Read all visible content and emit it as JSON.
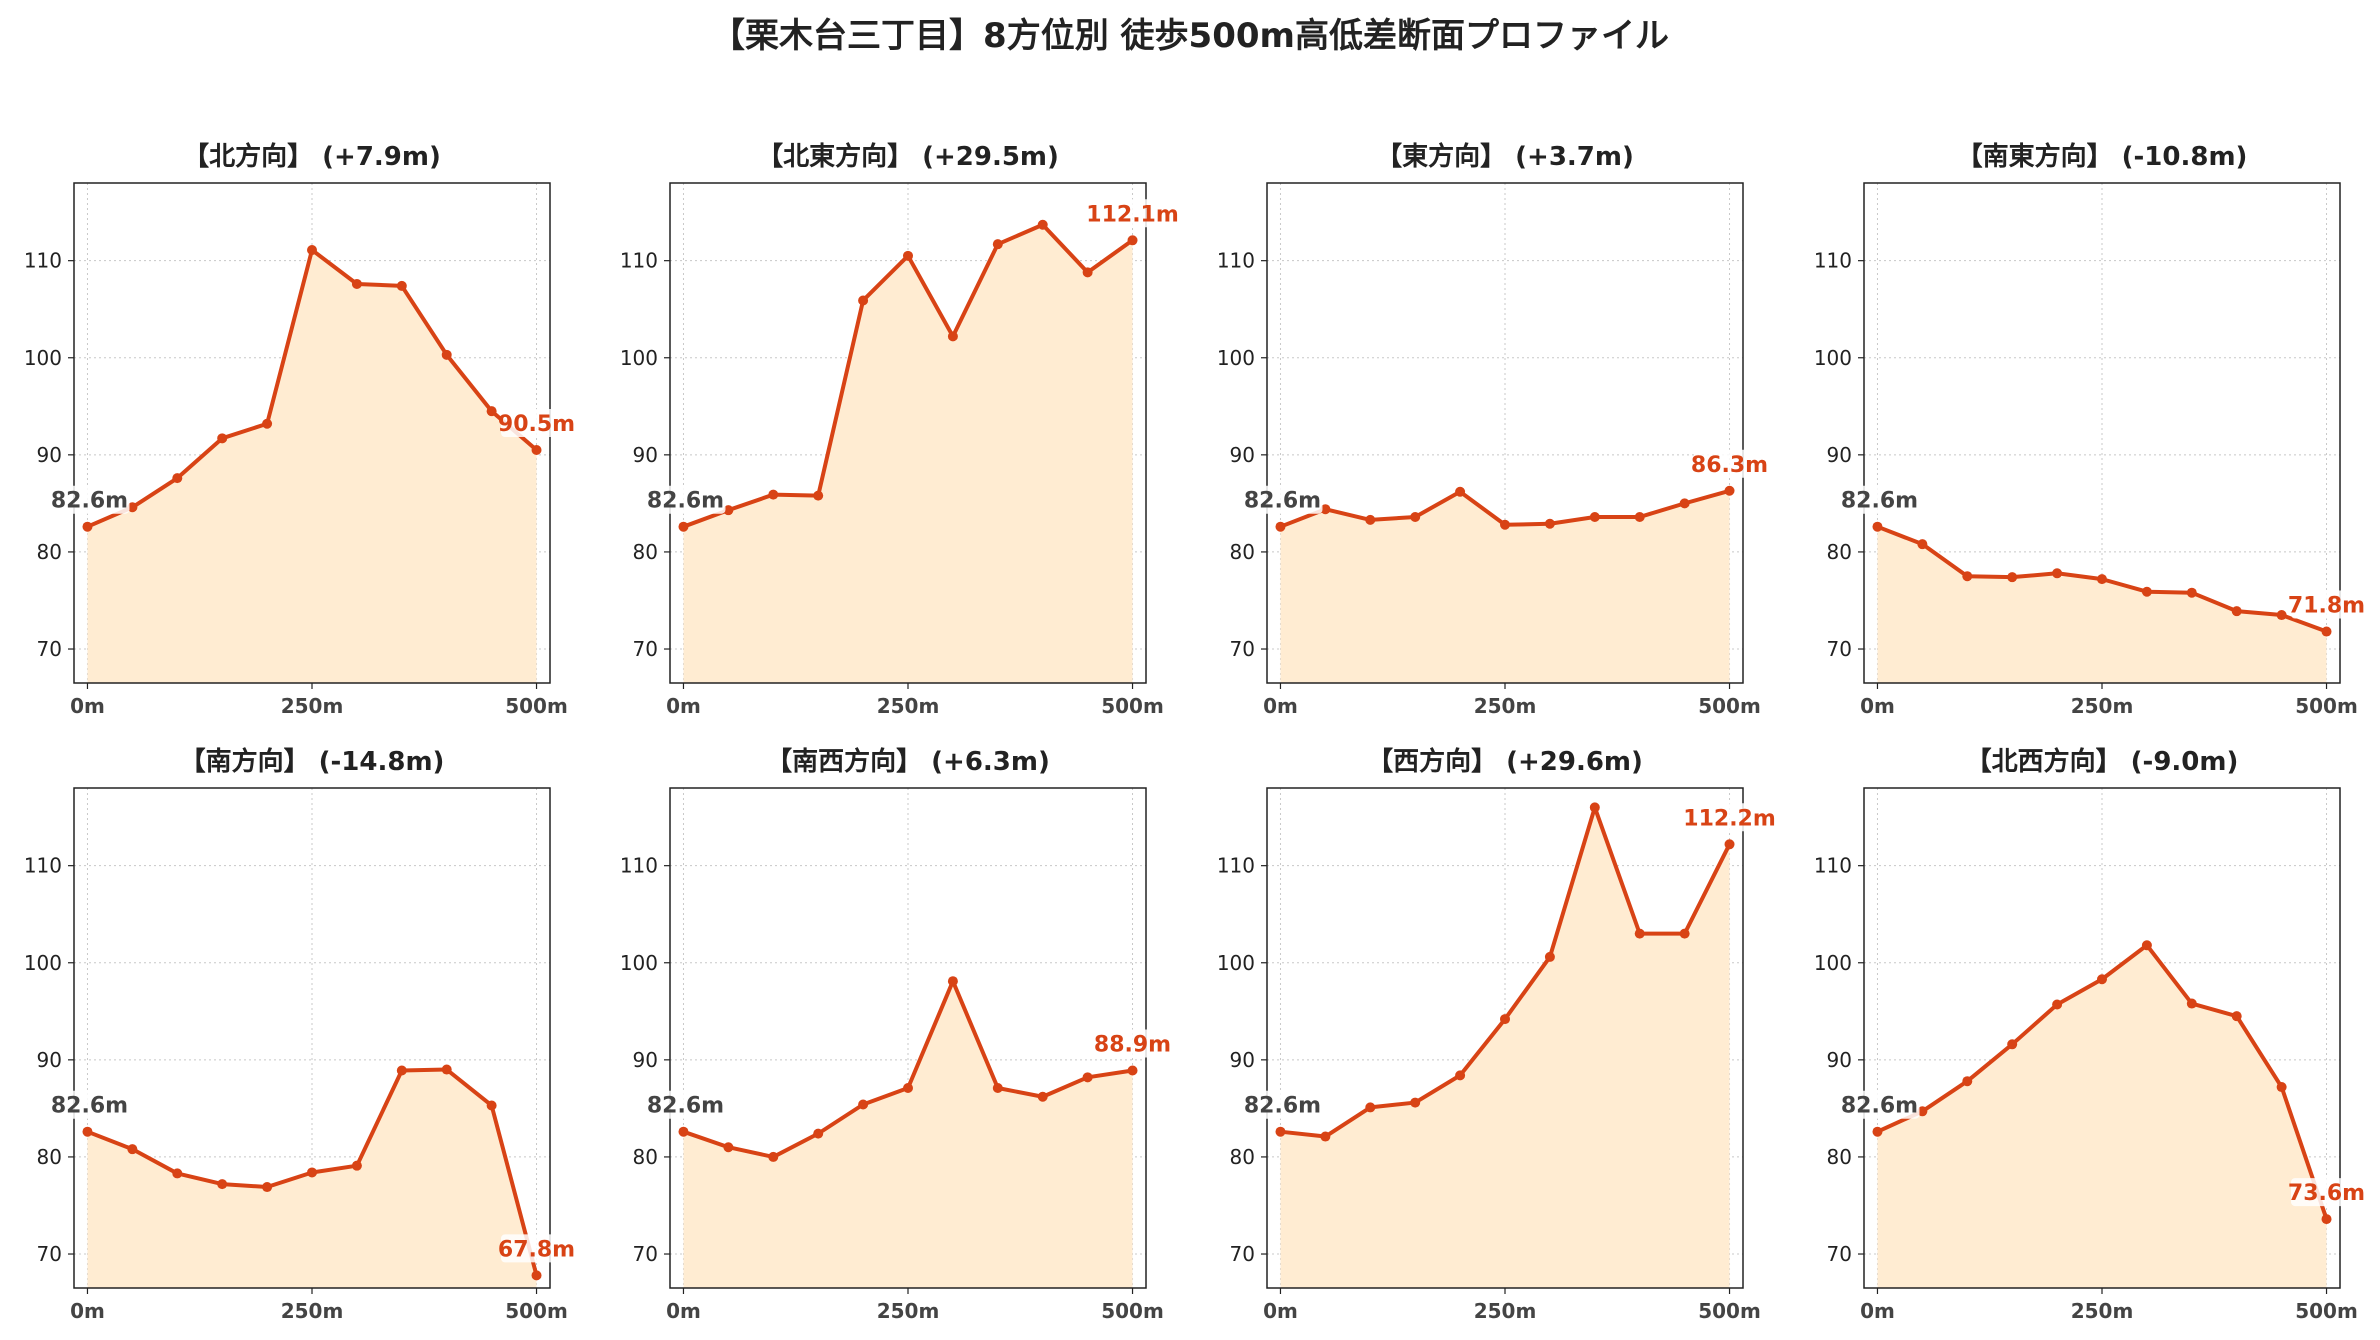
{
  "figure": {
    "title": "【栗木台三丁目】8方位別 徒歩500m高低差断面プロファイル"
  },
  "colors": {
    "line": "#d84315",
    "fill": "#ffecd2",
    "grid": "#c8c8c8",
    "start_label": "#444444"
  },
  "chart_data": [
    {
      "type": "area",
      "title": "【北方向】 (+7.9m)",
      "x": [
        0,
        50,
        100,
        150,
        200,
        250,
        300,
        350,
        400,
        450,
        500
      ],
      "values": [
        82.6,
        84.6,
        87.6,
        91.7,
        93.2,
        111.1,
        107.6,
        107.4,
        100.3,
        94.5,
        90.5
      ],
      "xticks": [
        0,
        250,
        500
      ],
      "xtick_labels": [
        "0m",
        "250m",
        "500m"
      ],
      "yticks": [
        70,
        80,
        90,
        100,
        110
      ],
      "xlim": [
        -15,
        515
      ],
      "ylim": [
        66.5,
        118
      ],
      "start_label": "82.6m",
      "end_label": "90.5m",
      "grid": true
    },
    {
      "type": "area",
      "title": "【北東方向】 (+29.5m)",
      "x": [
        0,
        50,
        100,
        150,
        200,
        250,
        300,
        350,
        400,
        450,
        500
      ],
      "values": [
        82.6,
        84.3,
        85.9,
        85.8,
        105.9,
        110.5,
        102.2,
        111.7,
        113.7,
        108.8,
        112.1
      ],
      "xticks": [
        0,
        250,
        500
      ],
      "xtick_labels": [
        "0m",
        "250m",
        "500m"
      ],
      "yticks": [
        70,
        80,
        90,
        100,
        110
      ],
      "xlim": [
        -15,
        515
      ],
      "ylim": [
        66.5,
        118
      ],
      "start_label": "82.6m",
      "end_label": "112.1m",
      "grid": true
    },
    {
      "type": "area",
      "title": "【東方向】 (+3.7m)",
      "x": [
        0,
        50,
        100,
        150,
        200,
        250,
        300,
        350,
        400,
        450,
        500
      ],
      "values": [
        82.6,
        84.4,
        83.3,
        83.6,
        86.2,
        82.8,
        82.9,
        83.6,
        83.6,
        85.0,
        86.3
      ],
      "xticks": [
        0,
        250,
        500
      ],
      "xtick_labels": [
        "0m",
        "250m",
        "500m"
      ],
      "yticks": [
        70,
        80,
        90,
        100,
        110
      ],
      "xlim": [
        -15,
        515
      ],
      "ylim": [
        66.5,
        118
      ],
      "start_label": "82.6m",
      "end_label": "86.3m",
      "grid": true
    },
    {
      "type": "area",
      "title": "【南東方向】 (-10.8m)",
      "x": [
        0,
        50,
        100,
        150,
        200,
        250,
        300,
        350,
        400,
        450,
        500
      ],
      "values": [
        82.6,
        80.8,
        77.5,
        77.4,
        77.8,
        77.2,
        75.9,
        75.8,
        73.9,
        73.5,
        71.8
      ],
      "xticks": [
        0,
        250,
        500
      ],
      "xtick_labels": [
        "0m",
        "250m",
        "500m"
      ],
      "yticks": [
        70,
        80,
        90,
        100,
        110
      ],
      "xlim": [
        -15,
        515
      ],
      "ylim": [
        66.5,
        118
      ],
      "start_label": "82.6m",
      "end_label": "71.8m",
      "grid": true
    },
    {
      "type": "area",
      "title": "【南方向】 (-14.8m)",
      "x": [
        0,
        50,
        100,
        150,
        200,
        250,
        300,
        350,
        400,
        450,
        500
      ],
      "values": [
        82.6,
        80.8,
        78.3,
        77.2,
        76.9,
        78.4,
        79.1,
        88.9,
        89.0,
        85.3,
        67.8
      ],
      "xticks": [
        0,
        250,
        500
      ],
      "xtick_labels": [
        "0m",
        "250m",
        "500m"
      ],
      "yticks": [
        70,
        80,
        90,
        100,
        110
      ],
      "xlim": [
        -15,
        515
      ],
      "ylim": [
        66.5,
        118
      ],
      "start_label": "82.6m",
      "end_label": "67.8m",
      "grid": true
    },
    {
      "type": "area",
      "title": "【南西方向】 (+6.3m)",
      "x": [
        0,
        50,
        100,
        150,
        200,
        250,
        300,
        350,
        400,
        450,
        500
      ],
      "values": [
        82.6,
        81.0,
        80.0,
        82.4,
        85.4,
        87.1,
        98.1,
        87.1,
        86.2,
        88.2,
        88.9
      ],
      "xticks": [
        0,
        250,
        500
      ],
      "xtick_labels": [
        "0m",
        "250m",
        "500m"
      ],
      "yticks": [
        70,
        80,
        90,
        100,
        110
      ],
      "xlim": [
        -15,
        515
      ],
      "ylim": [
        66.5,
        118
      ],
      "start_label": "82.6m",
      "end_label": "88.9m",
      "grid": true
    },
    {
      "type": "area",
      "title": "【西方向】 (+29.6m)",
      "x": [
        0,
        50,
        100,
        150,
        200,
        250,
        300,
        350,
        400,
        450,
        500
      ],
      "values": [
        82.6,
        82.1,
        85.1,
        85.6,
        88.4,
        94.2,
        100.6,
        116.0,
        103.0,
        103.0,
        112.2
      ],
      "xticks": [
        0,
        250,
        500
      ],
      "xtick_labels": [
        "0m",
        "250m",
        "500m"
      ],
      "yticks": [
        70,
        80,
        90,
        100,
        110
      ],
      "xlim": [
        -15,
        515
      ],
      "ylim": [
        66.5,
        118
      ],
      "start_label": "82.6m",
      "end_label": "112.2m",
      "grid": true
    },
    {
      "type": "area",
      "title": "【北西方向】 (-9.0m)",
      "x": [
        0,
        50,
        100,
        150,
        200,
        250,
        300,
        350,
        400,
        450,
        500
      ],
      "values": [
        82.6,
        84.7,
        87.8,
        91.6,
        95.7,
        98.3,
        101.8,
        95.8,
        94.5,
        87.2,
        73.6
      ],
      "xticks": [
        0,
        250,
        500
      ],
      "xtick_labels": [
        "0m",
        "250m",
        "500m"
      ],
      "yticks": [
        70,
        80,
        90,
        100,
        110
      ],
      "xlim": [
        -15,
        515
      ],
      "ylim": [
        66.5,
        118
      ],
      "start_label": "82.6m",
      "end_label": "73.6m",
      "grid": true
    }
  ]
}
